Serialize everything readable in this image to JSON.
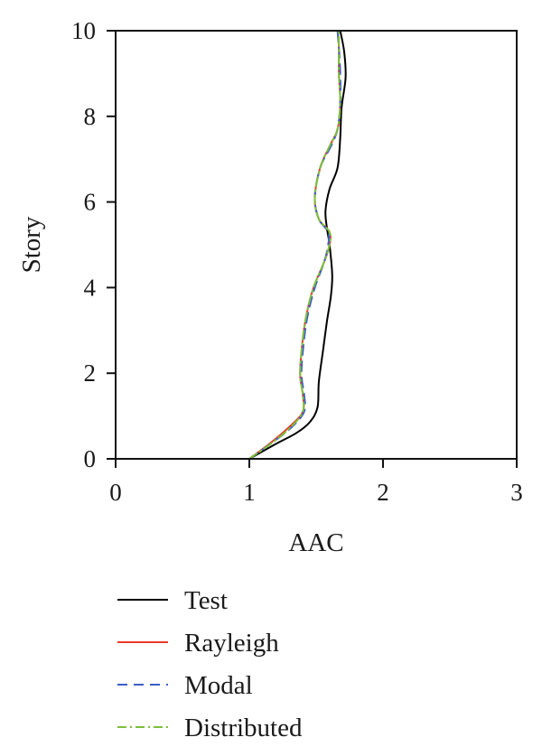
{
  "chart_data": {
    "type": "line",
    "xlabel": "AAC",
    "ylabel": "Story",
    "xlim": [
      0,
      3
    ],
    "ylim": [
      0,
      10
    ],
    "x_ticks": [
      "0",
      "1",
      "2",
      "3"
    ],
    "y_ticks": [
      "0",
      "2",
      "4",
      "6",
      "8",
      "10"
    ],
    "grid": false,
    "legend_position": "below",
    "series": [
      {
        "name": "Test",
        "color": "#000000",
        "dash": "solid",
        "points": [
          [
            1.0,
            0.0
          ],
          [
            1.2,
            0.35
          ],
          [
            1.35,
            0.6
          ],
          [
            1.45,
            0.85
          ],
          [
            1.51,
            1.2
          ],
          [
            1.52,
            1.8
          ],
          [
            1.55,
            2.5
          ],
          [
            1.58,
            3.2
          ],
          [
            1.61,
            3.8
          ],
          [
            1.62,
            4.3
          ],
          [
            1.6,
            5.0
          ],
          [
            1.58,
            5.4
          ],
          [
            1.57,
            5.8
          ],
          [
            1.6,
            6.3
          ],
          [
            1.66,
            6.8
          ],
          [
            1.68,
            7.5
          ],
          [
            1.69,
            8.2
          ],
          [
            1.72,
            8.9
          ],
          [
            1.71,
            9.5
          ],
          [
            1.68,
            10.0
          ]
        ]
      },
      {
        "name": "Rayleigh",
        "color": "#e8392b",
        "dash": "solid",
        "points": [
          [
            1.0,
            0.0
          ],
          [
            1.15,
            0.35
          ],
          [
            1.3,
            0.75
          ],
          [
            1.4,
            1.1
          ],
          [
            1.4,
            1.5
          ],
          [
            1.38,
            2.0
          ],
          [
            1.4,
            2.8
          ],
          [
            1.43,
            3.4
          ],
          [
            1.48,
            4.0
          ],
          [
            1.56,
            4.6
          ],
          [
            1.6,
            5.0
          ],
          [
            1.6,
            5.3
          ],
          [
            1.52,
            5.6
          ],
          [
            1.49,
            6.1
          ],
          [
            1.53,
            6.8
          ],
          [
            1.6,
            7.3
          ],
          [
            1.66,
            7.7
          ],
          [
            1.68,
            8.3
          ],
          [
            1.67,
            9.0
          ],
          [
            1.67,
            9.6
          ],
          [
            1.66,
            10.0
          ]
        ]
      },
      {
        "name": "Modal",
        "color": "#3b5ec6",
        "dash": "dashed",
        "points": [
          [
            1.0,
            0.0
          ],
          [
            1.15,
            0.33
          ],
          [
            1.31,
            0.72
          ],
          [
            1.41,
            1.1
          ],
          [
            1.41,
            1.5
          ],
          [
            1.39,
            2.0
          ],
          [
            1.41,
            2.8
          ],
          [
            1.44,
            3.4
          ],
          [
            1.49,
            4.0
          ],
          [
            1.56,
            4.6
          ],
          [
            1.59,
            5.0
          ],
          [
            1.59,
            5.3
          ],
          [
            1.52,
            5.6
          ],
          [
            1.49,
            6.1
          ],
          [
            1.53,
            6.8
          ],
          [
            1.61,
            7.3
          ],
          [
            1.66,
            7.7
          ],
          [
            1.68,
            8.3
          ],
          [
            1.68,
            9.0
          ],
          [
            1.67,
            9.6
          ],
          [
            1.66,
            10.0
          ]
        ]
      },
      {
        "name": "Distributed",
        "color": "#7cbf3c",
        "dash": "dashdot",
        "points": [
          [
            1.0,
            0.0
          ],
          [
            1.16,
            0.35
          ],
          [
            1.31,
            0.74
          ],
          [
            1.4,
            1.1
          ],
          [
            1.4,
            1.5
          ],
          [
            1.38,
            2.0
          ],
          [
            1.4,
            2.8
          ],
          [
            1.43,
            3.4
          ],
          [
            1.48,
            4.0
          ],
          [
            1.56,
            4.6
          ],
          [
            1.6,
            5.0
          ],
          [
            1.6,
            5.3
          ],
          [
            1.52,
            5.6
          ],
          [
            1.49,
            6.1
          ],
          [
            1.53,
            6.8
          ],
          [
            1.6,
            7.3
          ],
          [
            1.66,
            7.7
          ],
          [
            1.68,
            8.3
          ],
          [
            1.67,
            9.0
          ],
          [
            1.67,
            9.6
          ],
          [
            1.67,
            10.0
          ]
        ]
      }
    ]
  }
}
